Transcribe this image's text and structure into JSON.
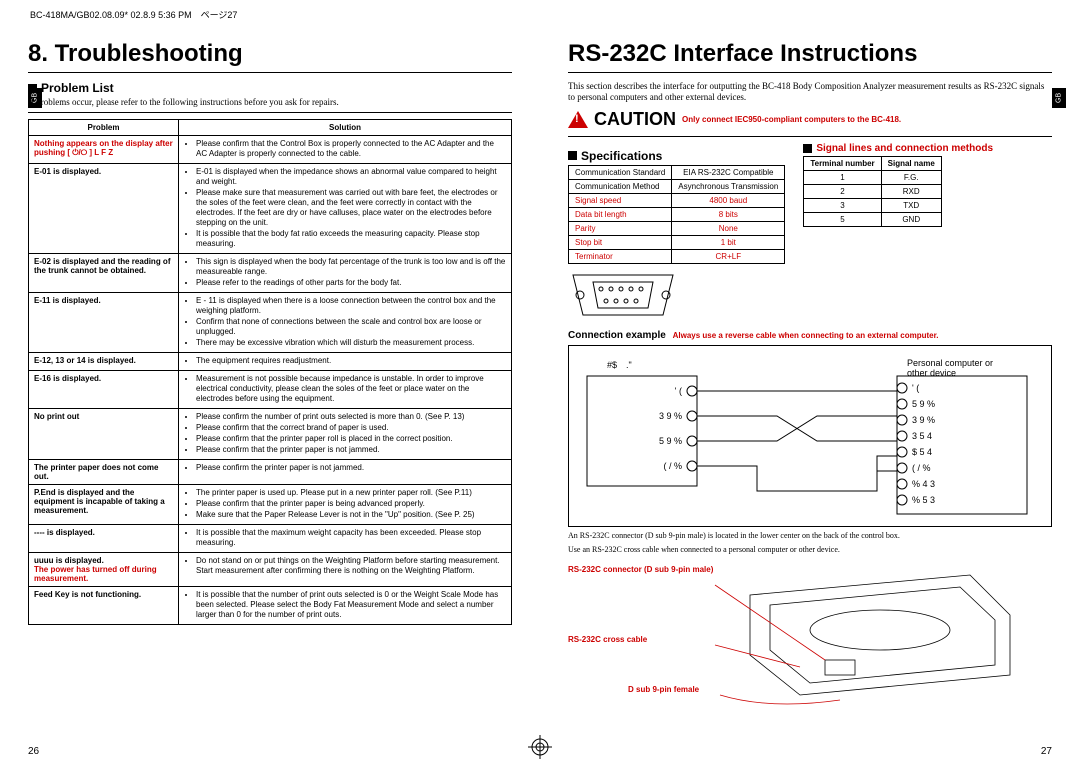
{
  "header": "BC-418MA/GB02.08.09* 02.8.9 5:36 PM　ページ27",
  "left": {
    "title": "8. Troubleshooting",
    "section": "Problem List",
    "intro": "If problems occur, please refer to the following instructions before you ask for repairs.",
    "table": {
      "headers": [
        "Problem",
        "Solution"
      ],
      "rows": [
        {
          "problem_html": "<span class='red'>Nothing appears on the display after pushing [ ⏻/⭘ ] L F Z</span>",
          "solutions": [
            "Please confirm that the Control Box is properly connected to the AC Adapter and the AC Adapter is properly connected to the cable."
          ]
        },
        {
          "problem": "E-01 is displayed.",
          "solutions": [
            "E-01 is displayed when the impedance shows an abnormal value compared to height and weight.",
            "Please make sure that measurement was carried out with bare feet, the electrodes or the soles of the feet were clean, and the feet were correctly in contact with the electrodes. If the feet are dry or have calluses, place water on the electrodes before stepping on the unit.",
            "It is possible that the body fat ratio exceeds the measuring capacity. Please stop measuring."
          ]
        },
        {
          "problem": "E-02 is displayed and the reading of the trunk cannot be obtained.",
          "solutions": [
            "This sign is displayed when the body fat percentage of the trunk is too low and is off the measureable range.",
            "Please refer to the readings of other parts for the body fat."
          ]
        },
        {
          "problem": "E-11 is displayed.",
          "solutions": [
            "E - 11 is displayed when there is a loose connection between the control box and the weighing platform.",
            "Confirm that none of connections between the scale and control box are loose or unplugged.",
            "There may be excessive vibration which will disturb the measurement process."
          ]
        },
        {
          "problem": "E-12, 13 or 14 is displayed.",
          "solutions": [
            "The equipment requires readjustment."
          ]
        },
        {
          "problem": "E-16 is displayed.",
          "solutions": [
            "Measurement is not possible because impedance is unstable. In order to improve electrical conductivity, please clean the soles of the feet or place water on the electrodes before using the equipment."
          ]
        },
        {
          "problem": "No print out",
          "solutions": [
            "Please confirm the number of print outs selected is more than 0. (See P. 13)",
            "Please confirm that the correct brand of paper is used.",
            "Please confirm that the printer paper roll is placed in the correct position.",
            "Please confirm that the printer paper is not jammed."
          ]
        },
        {
          "problem": "The printer paper does not come out.",
          "solutions": [
            "Please confirm the printer paper is not jammed."
          ]
        },
        {
          "problem": "P.End is displayed and the equipment is incapable of taking a measurement.",
          "solutions": [
            "The printer paper is used up. Please put in a new printer paper roll. (See P.11)",
            "Please confirm that the printer paper is being advanced properly.",
            "Make sure that the Paper Release Lever is not in the \"Up\" position. (See P. 25)"
          ]
        },
        {
          "problem": "---- is displayed.",
          "solutions": [
            "It is possible that the maximum weight capacity has been exceeded. Please stop measuring."
          ]
        },
        {
          "problem_html": "uuuu is displayed.<br><span class='red'>The power has turned off during measurement.</span>",
          "solutions": [
            "Do not stand on or put things on the Weighting Platform before starting measurement. Start measurement after confirming there is nothing on the Weighting Platform."
          ]
        },
        {
          "problem": "Feed Key is not functioning.",
          "solutions": [
            "It is possible that the number of print outs selected is 0 or the Weight Scale Mode has been selected. Please select the Body Fat Measurement Mode and select a number larger than 0 for the number of print outs."
          ]
        }
      ]
    },
    "page_num": "26"
  },
  "right": {
    "title": "RS-232C Interface Instructions",
    "intro": "This section describes the interface for outputting the BC-418 Body Composition Analyzer measurement results as RS-232C signals to personal computers and other external devices.",
    "caution": "CAUTION",
    "caution_note": "Only connect IEC950-compliant computers to the BC-418.",
    "spec_head": "Specifications",
    "spec_rows": [
      [
        "Communication Standard",
        "EIA RS-232C Compatible",
        "#000"
      ],
      [
        "Communication Method",
        "Asynchronous Transmission",
        "#000"
      ],
      [
        "Signal speed",
        "4800 baud",
        "#c00"
      ],
      [
        "Data bit length",
        "8 bits",
        "#c00"
      ],
      [
        "Parity",
        "None",
        "#c00"
      ],
      [
        "Stop bit",
        "1 bit",
        "#c00"
      ],
      [
        "Terminator",
        "CR+LF",
        "#c00"
      ]
    ],
    "sig_head": "Signal lines and connection methods",
    "sig_headers": [
      "Terminal number",
      "Signal name"
    ],
    "sig_rows": [
      [
        "1",
        "F.G."
      ],
      [
        "2",
        "RXD"
      ],
      [
        "3",
        "TXD"
      ],
      [
        "5",
        "GND"
      ]
    ],
    "conn_ex": "Connection example",
    "conn_ex_note": "Always use a reverse cable when connecting to an external computer.",
    "wiring": {
      "left_label": "#$　.\"",
      "right_label": "Personal computer or other device",
      "left_pins": [
        "' (",
        "3 9 %",
        "5 9 %",
        "( / %"
      ],
      "right_pins": [
        "' (",
        "5 9 %",
        "3 9 %",
        "3 5 4",
        "$ 5 4",
        "( / %",
        "% 4 3",
        "% 5 3"
      ]
    },
    "after_conn": [
      "An RS-232C connector (D sub 9-pin male) is located in the lower center on the back of the control box.",
      "Use an RS-232C cross cable when connected to a personal computer or other device."
    ],
    "labels": {
      "l1": "RS-232C connector (D sub 9-pin male)",
      "l2": "RS-232C cross cable",
      "l3": "D sub 9-pin female"
    },
    "page_num": "27"
  }
}
